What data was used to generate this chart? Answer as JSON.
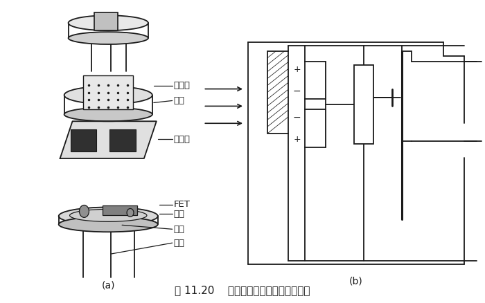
{
  "bg_color": "#ffffff",
  "line_color": "#1a1a1a",
  "title_text": "图 11.20    热释电人体红外传感器的结构",
  "label_a": "(a)",
  "label_b": "(b)",
  "fig_width": 7.0,
  "fig_height": 4.38,
  "dpi": 100
}
